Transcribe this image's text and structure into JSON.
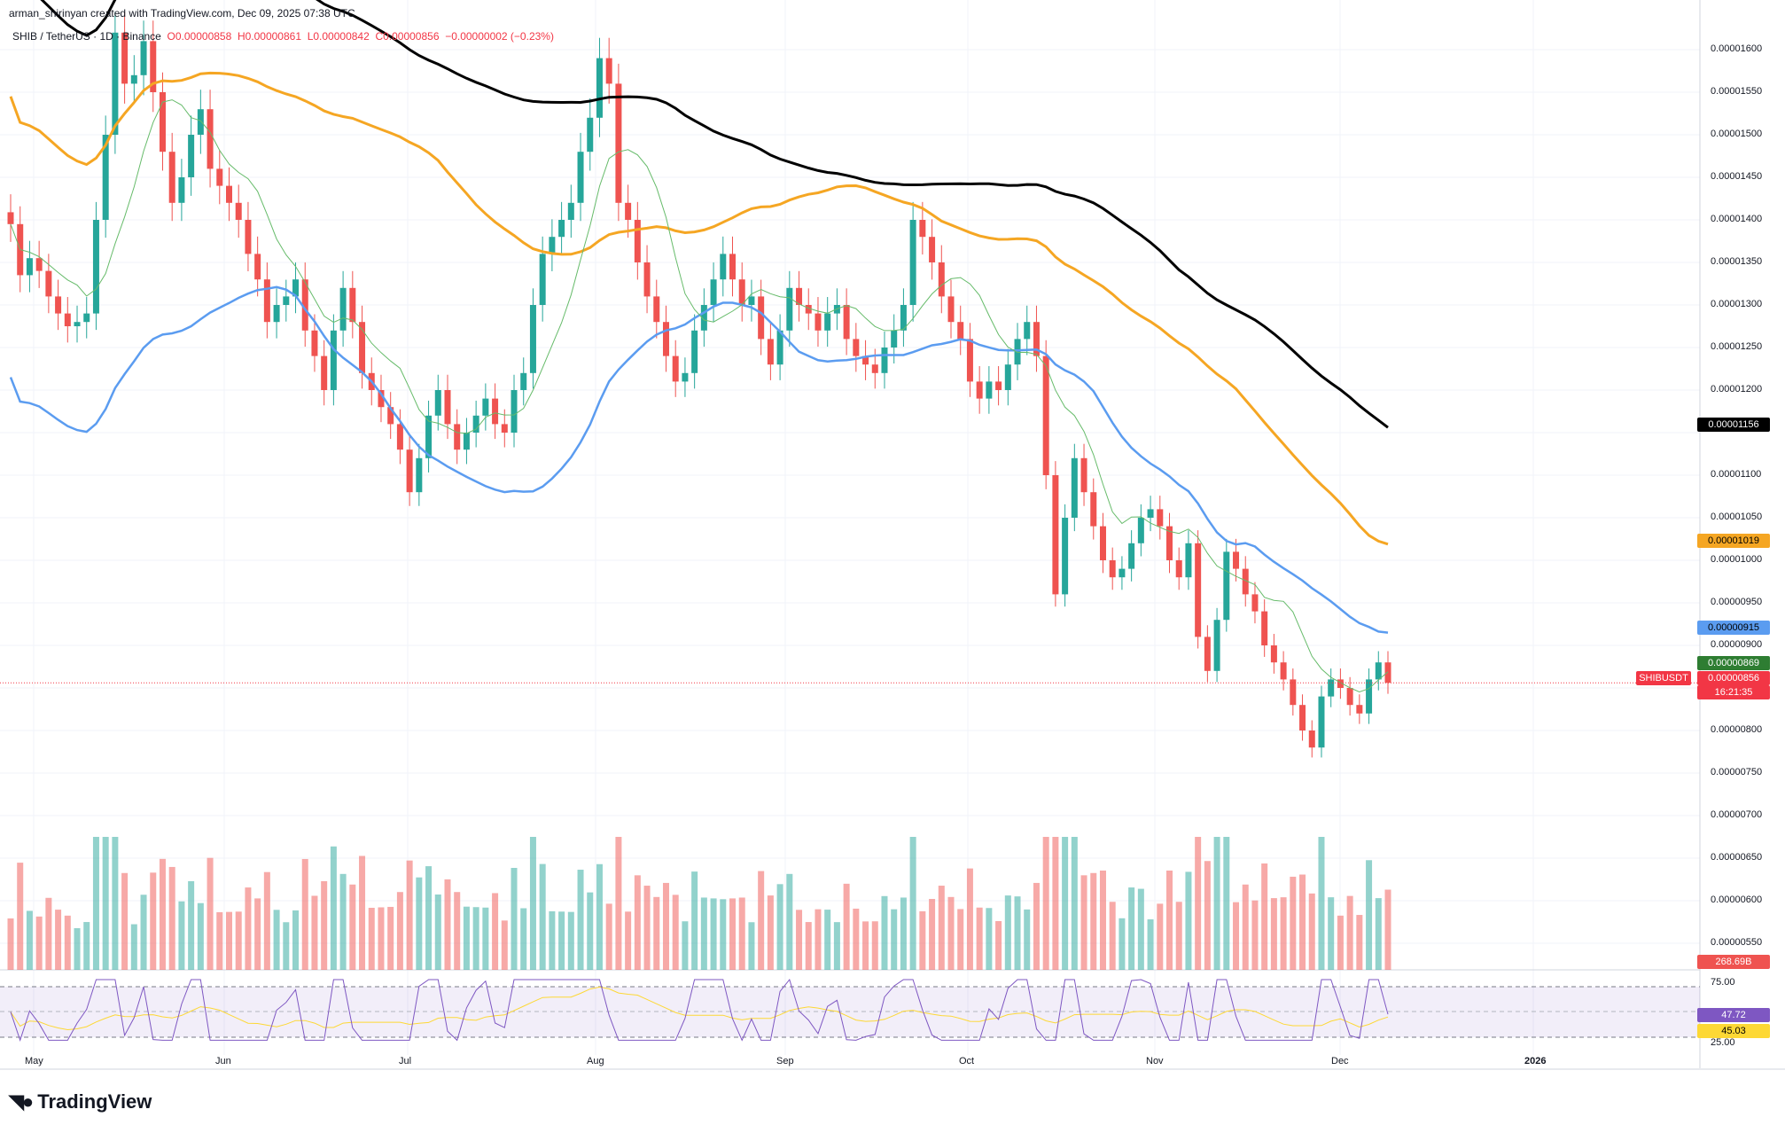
{
  "header": {
    "created_by": "arman_shirinyan created with TradingView.com, Dec 09, 2025 07:38 UTC",
    "symbol": "SHIB / TetherUS · 1D · Binance",
    "open": "O0.00000858",
    "high": "H0.00000861",
    "low": "L0.00000842",
    "close": "C0.00000856",
    "change": "−0.00000002 (−0.23%)"
  },
  "price_axis_ticks": [
    "0.00001600",
    "0.00001550",
    "0.00001500",
    "0.00001450",
    "0.00001400",
    "0.00001350",
    "0.00001300",
    "0.00001250",
    "0.00001200",
    "0.00001100",
    "0.00001050",
    "0.00001000",
    "0.00000950",
    "0.00000900",
    "0.00000800",
    "0.00000750",
    "0.00000700",
    "0.00000650",
    "0.00000600",
    "0.00000550"
  ],
  "price_tags": {
    "ma200": "0.00001156",
    "ma100": "0.00001019",
    "ma50": "0.00000915",
    "ma20": "0.00000869",
    "symbol_label": "SHIBUSDT",
    "last": "0.00000856",
    "countdown": "16:21:35",
    "volume": "268.69B"
  },
  "rsi": {
    "upper": "75.00",
    "lower": "25.00",
    "value": "47.72",
    "ma_value": "45.03"
  },
  "x_axis_labels": [
    "May",
    "Jun",
    "Jul",
    "Aug",
    "Sep",
    "Oct",
    "Nov",
    "Dec",
    "2026"
  ],
  "brand": "TradingView",
  "colors": {
    "up": "#26a69a",
    "down": "#ef5350",
    "ma200": "#000000",
    "ma100": "#f5a623",
    "ma50": "#5b9cf0",
    "ma20": "#66bb6a",
    "rsi": "#7e57c2",
    "rsi_ma": "#fdd835"
  },
  "chart_data": {
    "type": "candlestick",
    "x_axis": "daily, late Apr 2025 – Dec 09 2025",
    "y_axis": "price in USDT",
    "series": [
      {
        "name": "SHIBUSDT",
        "values": [
          1.395e-05,
          1.335e-05,
          1.355e-05,
          1.34e-05,
          1.31e-05,
          1.29e-05,
          1.275e-05,
          1.28e-05,
          1.29e-05,
          1.4e-05,
          1.5e-05,
          1.62e-05,
          1.56e-05,
          1.57e-05,
          1.61e-05,
          1.55e-05,
          1.48e-05,
          1.42e-05,
          1.45e-05,
          1.5e-05,
          1.53e-05,
          1.46e-05,
          1.44e-05,
          1.42e-05,
          1.4e-05,
          1.36e-05,
          1.33e-05,
          1.28e-05,
          1.3e-05,
          1.31e-05,
          1.33e-05,
          1.27e-05,
          1.24e-05,
          1.2e-05,
          1.27e-05,
          1.32e-05,
          1.28e-05,
          1.22e-05,
          1.2e-05,
          1.18e-05,
          1.16e-05,
          1.13e-05,
          1.08e-05,
          1.12e-05,
          1.17e-05,
          1.2e-05,
          1.16e-05,
          1.13e-05,
          1.15e-05,
          1.17e-05,
          1.19e-05,
          1.16e-05,
          1.15e-05,
          1.2e-05,
          1.22e-05,
          1.3e-05,
          1.36e-05,
          1.38e-05,
          1.4e-05,
          1.42e-05,
          1.48e-05,
          1.52e-05,
          1.59e-05,
          1.56e-05,
          1.42e-05,
          1.4e-05,
          1.35e-05,
          1.31e-05,
          1.28e-05,
          1.24e-05,
          1.21e-05,
          1.22e-05,
          1.27e-05,
          1.3e-05,
          1.33e-05,
          1.36e-05,
          1.33e-05,
          1.3e-05,
          1.31e-05,
          1.26e-05,
          1.23e-05,
          1.27e-05,
          1.32e-05,
          1.3e-05,
          1.29e-05,
          1.27e-05,
          1.29e-05,
          1.3e-05,
          1.26e-05,
          1.24e-05,
          1.23e-05,
          1.22e-05,
          1.25e-05,
          1.27e-05,
          1.3e-05,
          1.4e-05,
          1.38e-05,
          1.35e-05,
          1.31e-05,
          1.28e-05,
          1.26e-05,
          1.21e-05,
          1.19e-05,
          1.21e-05,
          1.2e-05,
          1.23e-05,
          1.26e-05,
          1.28e-05,
          1.24e-05,
          1.1e-05,
          9.6e-06,
          1.05e-05,
          1.12e-05,
          1.08e-05,
          1.04e-05,
          1e-05,
          9.8e-06,
          9.9e-06,
          1.02e-05,
          1.05e-05,
          1.06e-05,
          1.04e-05,
          1e-05,
          9.8e-06,
          1.02e-05,
          9.1e-06,
          8.7e-06,
          9.3e-06,
          1.01e-05,
          9.9e-06,
          9.6e-06,
          9.4e-06,
          9e-06,
          8.8e-06,
          8.6e-06,
          8.3e-06,
          8e-06,
          7.8e-06,
          8.4e-06,
          8.6e-06,
          8.5e-06,
          8.3e-06,
          8.2e-06,
          8.6e-06,
          8.8e-06,
          8.56e-06
        ]
      }
    ],
    "moving_averages": [
      {
        "name": "MA200",
        "last": 1.156e-05
      },
      {
        "name": "MA100",
        "last": 1.019e-05
      },
      {
        "name": "MA50",
        "last": 9.15e-06
      },
      {
        "name": "MA20",
        "last": 8.69e-06
      }
    ],
    "volume_last": "268.69B",
    "rsi_last": 47.72,
    "rsi_ma_last": 45.03,
    "ylim": [
      5.4e-06,
      1.62e-05
    ]
  }
}
